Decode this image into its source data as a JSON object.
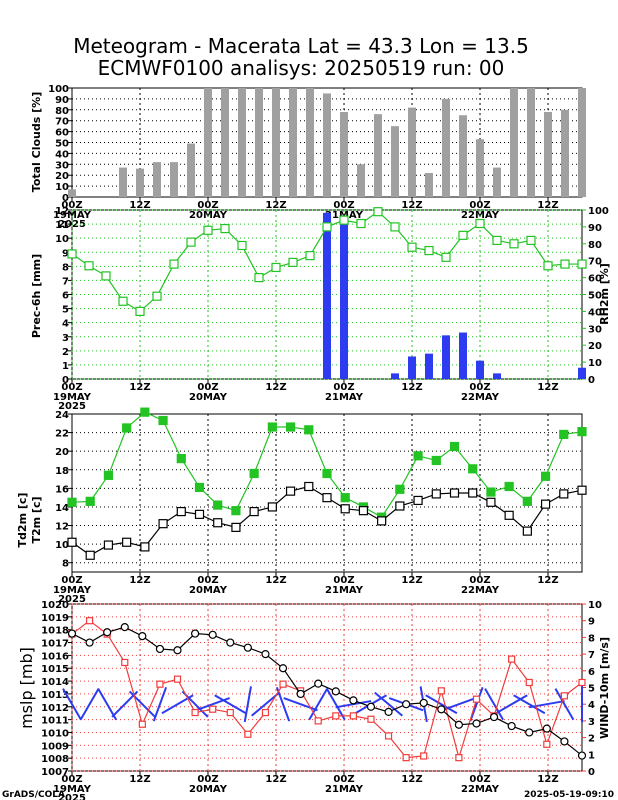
{
  "title_line1": "Meteogram - Macerata Lat = 43.3 Lon = 13.5",
  "title_line2": "ECMWF0100 analisys: 20250519 run: 00",
  "footer_left": "GrADS/COLA",
  "footer_right": "2025-05-19-09:10",
  "colors": {
    "green": "#22c322",
    "blue": "#2d3cf0",
    "red": "#f03c3c",
    "gray": "#a0a0a0",
    "black": "#000000"
  },
  "x_axis": {
    "ticks": [
      "00Z",
      "12Z",
      "00Z",
      "12Z",
      "00Z",
      "12Z",
      "00Z",
      "12Z"
    ],
    "dates": [
      "19MAY",
      "20MAY",
      "21MAY",
      "22MAY"
    ],
    "year": "2025"
  },
  "chart_data": [
    {
      "type": "bar",
      "ylabel": "Total Clouds [%]",
      "ylim": [
        0,
        100
      ],
      "yticks": [
        0,
        10,
        20,
        30,
        40,
        50,
        60,
        70,
        80,
        90,
        100
      ],
      "grid": true,
      "values": [
        7,
        0,
        0,
        27,
        26,
        32,
        32,
        49,
        100,
        100,
        100,
        100,
        100,
        100,
        100,
        95,
        78,
        30,
        76,
        65,
        82,
        22,
        90,
        75,
        53,
        27,
        100,
        100,
        78,
        80,
        100
      ]
    },
    {
      "type": "bar+line",
      "ylabel": "Prec-6h [mm]",
      "ylabel_right": "RH2m [%]",
      "ylim": [
        0,
        12
      ],
      "yticks": [
        0,
        1,
        2,
        3,
        4,
        5,
        6,
        7,
        8,
        9,
        10,
        11,
        12
      ],
      "ylim_right": [
        0,
        100
      ],
      "yticks_right": [
        0,
        10,
        20,
        30,
        40,
        50,
        60,
        70,
        80,
        90,
        100
      ],
      "grid": true,
      "precip": [
        0,
        0,
        0,
        0,
        0,
        0,
        0,
        0,
        0,
        0,
        0,
        0,
        0,
        0,
        0,
        11.8,
        11.4,
        0,
        0,
        0.4,
        1.6,
        1.8,
        3.1,
        3.3,
        1.3,
        0.4,
        0,
        0,
        0,
        0,
        0.8
      ],
      "rh_x": [
        0,
        3,
        6,
        9,
        12,
        15,
        18,
        21,
        24,
        27,
        30,
        33,
        36,
        39,
        42,
        45,
        48,
        51,
        54,
        57,
        60,
        63,
        66,
        69,
        72,
        75,
        78,
        81,
        84,
        87,
        90
      ],
      "rh": [
        74,
        67,
        61,
        46,
        40,
        49,
        68,
        81,
        88,
        89,
        79,
        60,
        66,
        69,
        73,
        90,
        94,
        92,
        99,
        90,
        78,
        76,
        72,
        85,
        92,
        82,
        80,
        82,
        67,
        68,
        68
      ]
    },
    {
      "type": "line",
      "ylabel": "Td2m [c]",
      "ylabel2": "T2m [c]",
      "ylim": [
        7,
        24
      ],
      "yticks": [
        8,
        10,
        12,
        14,
        16,
        18,
        20,
        22,
        24
      ],
      "grid": true,
      "series": [
        {
          "name": "T2m [c]",
          "color": "#22c322",
          "marker": "filled-square",
          "values": [
            14.5,
            14.6,
            17.4,
            22.5,
            24.2,
            23.3,
            19.2,
            16.1,
            14.2,
            13.6,
            17.6,
            22.6,
            22.6,
            22.3,
            17.6,
            15.0,
            14.0,
            12.9,
            15.9,
            19.5,
            19.0,
            20.5,
            18.1,
            15.6,
            16.2,
            14.6,
            17.3,
            21.8,
            22.1
          ]
        },
        {
          "name": "Td2m [c]",
          "color": "#000000",
          "marker": "open-square",
          "values": [
            10.2,
            8.8,
            9.9,
            10.2,
            9.7,
            12.2,
            13.5,
            13.2,
            12.3,
            11.8,
            13.5,
            14.0,
            15.7,
            16.2,
            15.0,
            13.8,
            13.6,
            12.5,
            14.1,
            14.7,
            15.4,
            15.5,
            15.5,
            14.5,
            13.1,
            11.4,
            14.3,
            15.4,
            15.8
          ]
        }
      ]
    },
    {
      "type": "line",
      "ylabel": "mslp [mb]",
      "ylabel_right": "WIND-10m [m/s]",
      "ylim": [
        1007,
        1020
      ],
      "yticks": [
        1007,
        1008,
        1009,
        1010,
        1011,
        1012,
        1013,
        1014,
        1015,
        1016,
        1017,
        1018,
        1019,
        1020
      ],
      "ylim_right": [
        0,
        10
      ],
      "yticks_right": [
        0,
        1,
        2,
        3,
        4,
        5,
        6,
        7,
        8,
        9,
        10
      ],
      "grid": true,
      "mslp": [
        1017.7,
        1017.0,
        1017.8,
        1018.2,
        1017.5,
        1016.5,
        1016.4,
        1017.7,
        1017.6,
        1017.0,
        1016.6,
        1016.1,
        1015.0,
        1013.0,
        1013.8,
        1013.2,
        1012.5,
        1012.0,
        1011.6,
        1012.2,
        1012.3,
        1011.8,
        1010.6,
        1010.7,
        1011.2,
        1010.5,
        1010.0,
        1010.3,
        1009.3,
        1008.2
      ],
      "wind": [
        8.2,
        9.0,
        8.2,
        6.5,
        2.8,
        5.2,
        5.5,
        3.5,
        3.7,
        3.5,
        2.2,
        3.5,
        5.2,
        4.8,
        3.0,
        3.3,
        3.3,
        3.1,
        2.1,
        0.8,
        0.9,
        4.8,
        0.8,
        4.3,
        3.3,
        6.7,
        5.3,
        1.6,
        4.5,
        5.3
      ],
      "wind_dir_deg": [
        60,
        120,
        60,
        135,
        45,
        110,
        150,
        45,
        160,
        30,
        100,
        140,
        70,
        20,
        120,
        60,
        170,
        150,
        40,
        20,
        80,
        30,
        160,
        110,
        60,
        150,
        30,
        170,
        60,
        90
      ]
    }
  ]
}
